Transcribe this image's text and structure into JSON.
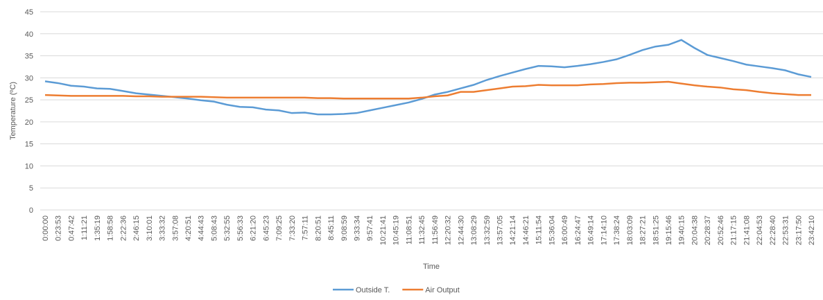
{
  "chart_data": {
    "type": "line",
    "xlabel": "Time",
    "ylabel": "Temperature (ºC)",
    "categories": [
      "0:00:00",
      "0:23:53",
      "0:47:42",
      "1:11:21",
      "1:35:19",
      "1:58:58",
      "2:22:36",
      "2:46:15",
      "3:10:01",
      "3:33:32",
      "3:57:08",
      "4:20:51",
      "4:44:43",
      "5:08:43",
      "5:32:55",
      "5:56:33",
      "6:21:20",
      "6:45:23",
      "7:09:25",
      "7:33:20",
      "7:57:11",
      "8:20:51",
      "8:45:11",
      "9:08:59",
      "9:33:34",
      "9:57:41",
      "10:21:41",
      "10:45:19",
      "11:08:51",
      "11:32:45",
      "11:56:49",
      "12:20:32",
      "12:44:30",
      "13:08:29",
      "13:32:59",
      "13:57:05",
      "14:21:14",
      "14:46:21",
      "15:11:54",
      "15:36:04",
      "16:00:49",
      "16:24:47",
      "16:49:14",
      "17:14:10",
      "17:38:24",
      "18:03:09",
      "18:27:21",
      "18:51:25",
      "19:15:46",
      "19:40:15",
      "20:04:38",
      "20:28:37",
      "20:52:46",
      "21:17:15",
      "21:41:08",
      "22:04:53",
      "22:28:40",
      "22:53:31",
      "23:17:50",
      "23:42:10"
    ],
    "series": [
      {
        "name": "Outside T.",
        "color": "#5b9bd5",
        "values": [
          29.2,
          28.8,
          28.2,
          28.0,
          27.6,
          27.5,
          27.0,
          26.5,
          26.2,
          25.9,
          25.6,
          25.3,
          24.9,
          24.6,
          23.9,
          23.4,
          23.3,
          22.8,
          22.6,
          22.0,
          22.1,
          21.7,
          21.7,
          21.8,
          22.0,
          22.6,
          23.2,
          23.8,
          24.4,
          25.2,
          26.2,
          26.8,
          27.6,
          28.4,
          29.5,
          30.4,
          31.2,
          32.0,
          32.7,
          32.6,
          32.4,
          32.7,
          33.1,
          33.6,
          34.2,
          35.2,
          36.3,
          37.1,
          37.5,
          38.6,
          36.8,
          35.2,
          34.5,
          33.8,
          33.0,
          32.6,
          32.2,
          31.7,
          30.8,
          30.2
        ]
      },
      {
        "name": "Air Output",
        "color": "#ed7d31",
        "values": [
          26.1,
          26.0,
          25.9,
          25.9,
          25.9,
          25.9,
          25.9,
          25.8,
          25.8,
          25.7,
          25.7,
          25.7,
          25.7,
          25.6,
          25.5,
          25.5,
          25.5,
          25.5,
          25.5,
          25.5,
          25.5,
          25.4,
          25.4,
          25.3,
          25.3,
          25.3,
          25.3,
          25.3,
          25.3,
          25.5,
          25.8,
          26.0,
          26.8,
          26.8,
          27.2,
          27.6,
          28.0,
          28.1,
          28.4,
          28.3,
          28.3,
          28.3,
          28.5,
          28.6,
          28.8,
          28.9,
          28.9,
          29.0,
          29.1,
          28.7,
          28.3,
          28.0,
          27.8,
          27.4,
          27.2,
          26.8,
          26.5,
          26.3,
          26.1,
          26.1
        ]
      }
    ],
    "ylim": [
      0,
      45
    ],
    "yticks": [
      0,
      5,
      10,
      15,
      20,
      25,
      30,
      35,
      40,
      45
    ],
    "grid": true,
    "legend": "bottom"
  }
}
